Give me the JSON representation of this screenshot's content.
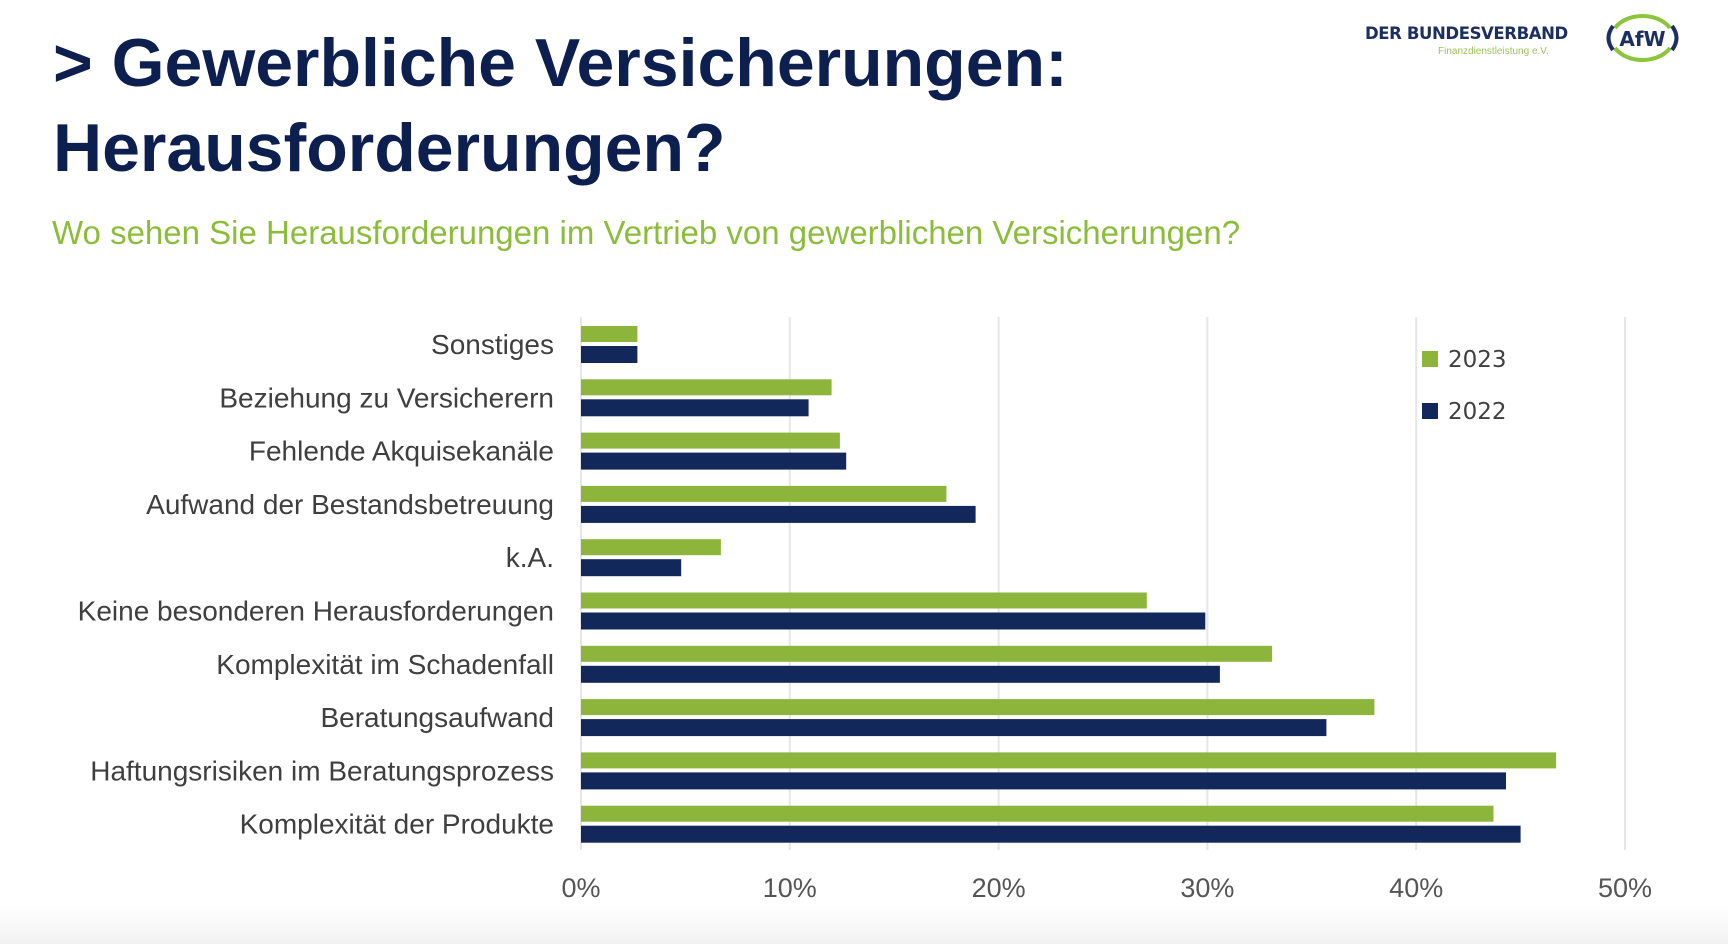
{
  "header": {
    "title_line1": "> Gewerbliche Versicherungen:",
    "title_line2": "Herausforderungen?",
    "subtitle": "Wo sehen Sie Herausforderungen im Vertrieb von gewerblichen Versicherungen?"
  },
  "logo": {
    "name": "DER BUNDESVERBAND",
    "tagline": "Finanzdienstleistung e.V.",
    "mark": "AfW"
  },
  "colors": {
    "title": "#0d1f4f",
    "subtitle": "#8bbd3a",
    "series_2023": "#8db53c",
    "series_2022": "#12285a",
    "grid": "#e6e6e6"
  },
  "chart_data": {
    "type": "bar",
    "orientation": "horizontal",
    "title": "Wo sehen Sie Herausforderungen im Vertrieb von gewerblichen Versicherungen?",
    "xlabel": "",
    "ylabel": "",
    "xlim": [
      0,
      50
    ],
    "x_ticks": [
      "0%",
      "10%",
      "20%",
      "30%",
      "40%",
      "50%"
    ],
    "x_tick_values": [
      0,
      10,
      20,
      30,
      40,
      50
    ],
    "grid": true,
    "legend_position": "top-right",
    "unit": "%",
    "categories": [
      "Sonstiges",
      "Beziehung zu Versicherern",
      "Fehlende Akquisekanäle",
      "Aufwand der Bestandsbetreuung",
      "k.A.",
      "Keine besonderen Herausforderungen",
      "Komplexität im Schadenfall",
      "Beratungsaufwand",
      "Haftungsrisiken im Beratungsprozess",
      "Komplexität der Produkte"
    ],
    "series": [
      {
        "name": "2023",
        "color": "#8db53c",
        "values": [
          2.7,
          12.0,
          12.4,
          17.5,
          6.7,
          27.1,
          33.1,
          38.0,
          46.7,
          43.7
        ]
      },
      {
        "name": "2022",
        "color": "#12285a",
        "values": [
          2.7,
          10.9,
          12.7,
          18.9,
          4.8,
          29.9,
          30.6,
          35.7,
          44.3,
          45.0
        ]
      }
    ]
  }
}
